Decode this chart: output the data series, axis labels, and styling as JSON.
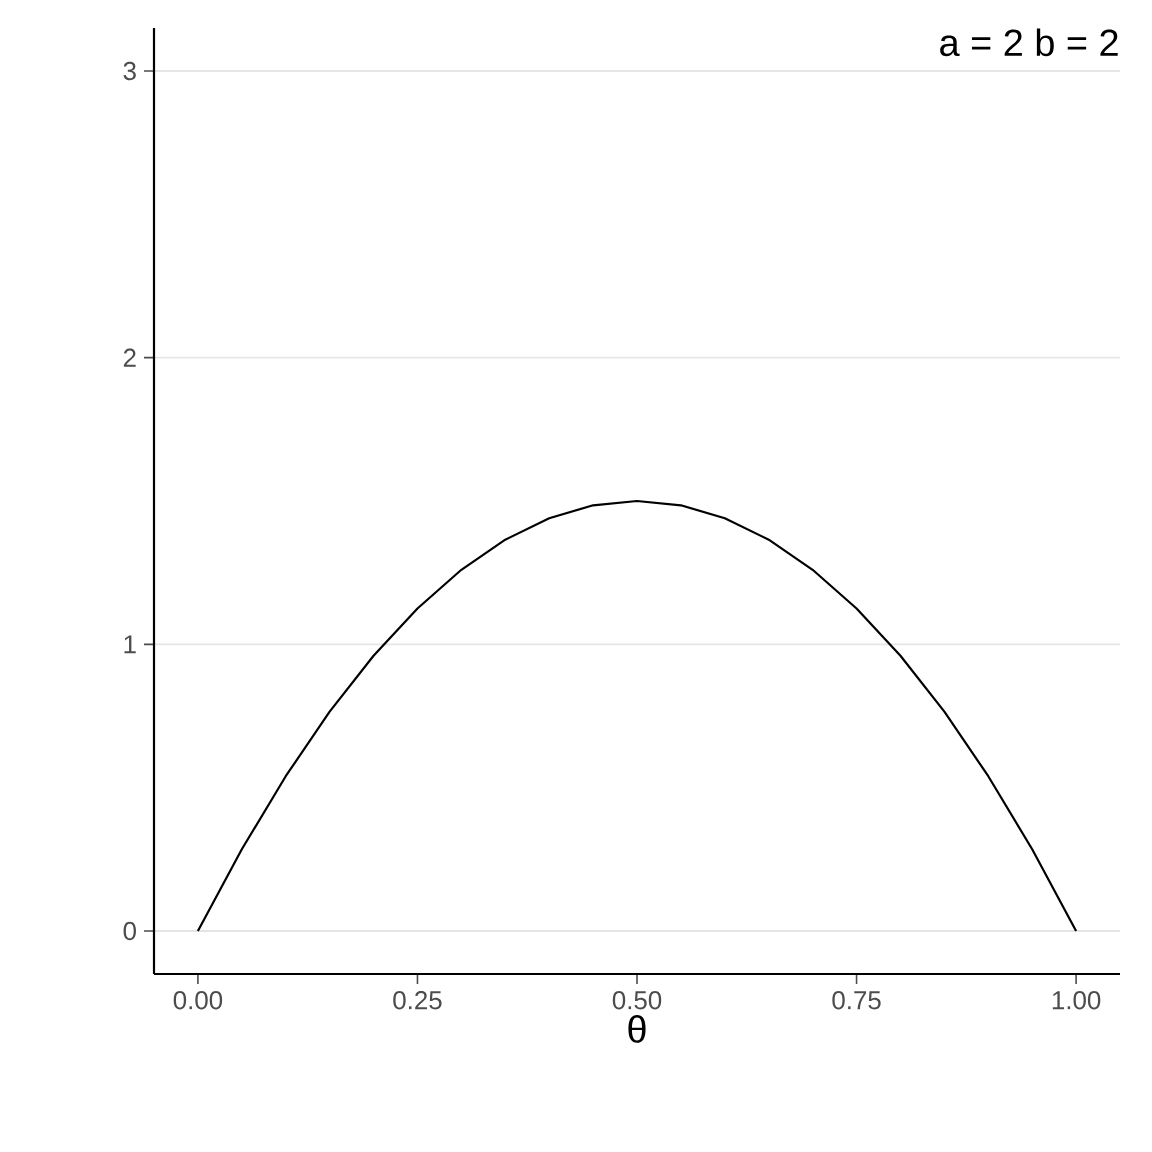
{
  "chart_data": {
    "type": "line",
    "xlabel": "θ",
    "annotations": [
      "a = 2 b = 2"
    ],
    "x": [
      0,
      0.05,
      0.1,
      0.15,
      0.2,
      0.25,
      0.3,
      0.35,
      0.4,
      0.45,
      0.5,
      0.55,
      0.6,
      0.65,
      0.7,
      0.75,
      0.8,
      0.85,
      0.9,
      0.95,
      1
    ],
    "values": [
      0,
      0.285,
      0.54,
      0.765,
      0.96,
      1.125,
      1.26,
      1.365,
      1.44,
      1.485,
      1.5,
      1.485,
      1.44,
      1.365,
      1.26,
      1.125,
      0.96,
      0.765,
      0.54,
      0.285,
      0
    ],
    "color": "#000000",
    "xlim": [
      -0.05,
      1.05
    ],
    "ylim": [
      -0.15,
      3.15
    ],
    "xticks": [
      {
        "value": 0,
        "label": "0.00"
      },
      {
        "value": 0.25,
        "label": "0.25"
      },
      {
        "value": 0.5,
        "label": "0.50"
      },
      {
        "value": 0.75,
        "label": "0.75"
      },
      {
        "value": 1,
        "label": "1.00"
      }
    ],
    "yticks": [
      0,
      1,
      2,
      3
    ],
    "grid": "y"
  }
}
